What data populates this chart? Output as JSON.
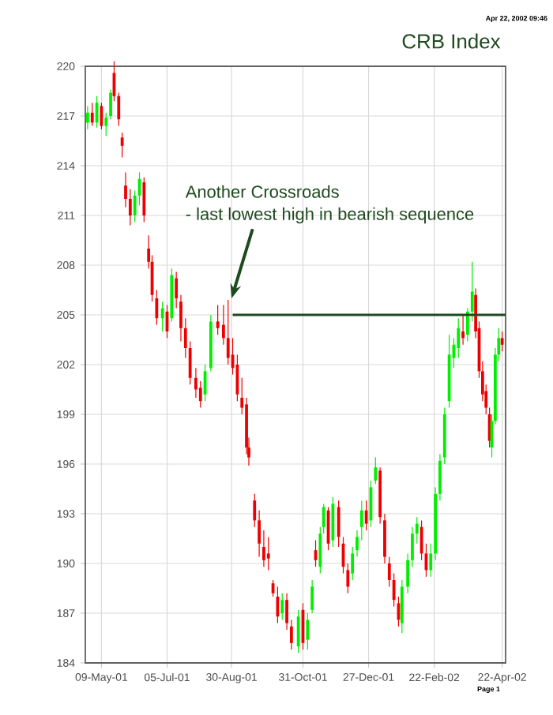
{
  "chart_data": {
    "type": "candlestick",
    "title": "CRB Index",
    "x": [
      "2001-04-27",
      "2001-05-01",
      "2001-05-05",
      "2001-05-09",
      "2001-05-13",
      "2001-05-17",
      "2001-05-20",
      "2001-05-24",
      "2001-05-27",
      "2001-05-30",
      "2001-06-03",
      "2001-06-07",
      "2001-06-11",
      "2001-06-15",
      "2001-06-19",
      "2001-06-22",
      "2001-06-26",
      "2001-07-01",
      "2001-07-05",
      "2001-07-09",
      "2001-07-13",
      "2001-07-17",
      "2001-07-21",
      "2001-07-25",
      "2001-07-30",
      "2001-08-03",
      "2001-08-07",
      "2001-08-12",
      "2001-08-18",
      "2001-08-23",
      "2001-08-27",
      "2001-08-31",
      "2001-09-04",
      "2001-09-08",
      "2001-09-12",
      "2001-09-14",
      "2001-09-19",
      "2001-09-23",
      "2001-09-27",
      "2001-10-01",
      "2001-10-05",
      "2001-10-09",
      "2001-10-13",
      "2001-10-17",
      "2001-10-21",
      "2001-10-27",
      "2001-10-31",
      "2001-11-04",
      "2001-11-08",
      "2001-11-11",
      "2001-11-15",
      "2001-11-18",
      "2001-11-22",
      "2001-11-26",
      "2001-12-01",
      "2001-12-05",
      "2001-12-09",
      "2001-12-13",
      "2001-12-17",
      "2001-12-21",
      "2001-12-25",
      "2001-12-29",
      "2002-01-02",
      "2002-01-06",
      "2002-01-10",
      "2002-01-14",
      "2002-01-18",
      "2002-01-22",
      "2002-01-25",
      "2002-01-30",
      "2002-02-03",
      "2002-02-07",
      "2002-02-11",
      "2002-02-15",
      "2002-02-19",
      "2002-02-23",
      "2002-02-27",
      "2002-03-03",
      "2002-03-07",
      "2002-03-11",
      "2002-03-15",
      "2002-03-19",
      "2002-03-23",
      "2002-03-27",
      "2002-03-30",
      "2002-04-02",
      "2002-04-05",
      "2002-04-08",
      "2002-04-11",
      "2002-04-13",
      "2002-04-16",
      "2002-04-19",
      "2002-04-22"
    ],
    "ohlc": [
      [
        216.6,
        217.6,
        216.2,
        217.2
      ],
      [
        217.2,
        217.8,
        216.4,
        216.6
      ],
      [
        216.6,
        218.2,
        216.3,
        217.8
      ],
      [
        217.6,
        217.8,
        216.2,
        216.4
      ],
      [
        216.4,
        217.2,
        215.8,
        216.9
      ],
      [
        217.0,
        218.6,
        216.8,
        218.4
      ],
      [
        219.6,
        220.3,
        217.9,
        218.2
      ],
      [
        218.2,
        218.4,
        216.4,
        216.8
      ],
      [
        215.7,
        216.0,
        214.5,
        215.2
      ],
      [
        212.8,
        213.6,
        211.5,
        212.0
      ],
      [
        212.0,
        212.6,
        210.4,
        211.0
      ],
      [
        211.0,
        212.5,
        210.6,
        212.2
      ],
      [
        212.2,
        213.6,
        211.6,
        213.2
      ],
      [
        213.0,
        213.3,
        210.6,
        211.0
      ],
      [
        209.0,
        209.8,
        207.8,
        208.2
      ],
      [
        208.2,
        208.6,
        205.8,
        206.2
      ],
      [
        206.0,
        206.5,
        204.4,
        204.8
      ],
      [
        204.8,
        205.8,
        204.0,
        205.4
      ],
      [
        205.2,
        205.6,
        203.6,
        204.0
      ],
      [
        204.8,
        207.8,
        204.6,
        207.4
      ],
      [
        207.2,
        207.6,
        205.4,
        206.0
      ],
      [
        205.8,
        206.2,
        203.4,
        204.2
      ],
      [
        204.2,
        204.8,
        202.4,
        203.0
      ],
      [
        203.0,
        203.4,
        200.8,
        201.2
      ],
      [
        201.2,
        201.8,
        200.0,
        200.5
      ],
      [
        200.6,
        201.0,
        199.4,
        199.8
      ],
      [
        200.2,
        202.0,
        199.8,
        201.6
      ],
      [
        201.8,
        205.0,
        201.6,
        204.6
      ],
      [
        204.6,
        205.6,
        203.8,
        204.2
      ],
      [
        204.4,
        205.6,
        203.2,
        203.6
      ],
      [
        203.6,
        205.9,
        202.0,
        202.4
      ],
      [
        202.6,
        203.6,
        201.4,
        201.8
      ],
      [
        202.0,
        202.6,
        199.8,
        200.2
      ],
      [
        200.0,
        201.2,
        199.0,
        199.4
      ],
      [
        199.6,
        200.0,
        196.6,
        197.0
      ],
      [
        197.0,
        197.6,
        195.9,
        196.4
      ],
      [
        193.8,
        194.2,
        192.2,
        192.6
      ],
      [
        192.6,
        193.2,
        190.4,
        191.2
      ],
      [
        191.0,
        192.0,
        189.8,
        190.2
      ],
      [
        190.6,
        191.6,
        189.6,
        190.3
      ],
      [
        188.8,
        189.0,
        188.0,
        188.2
      ],
      [
        188.0,
        188.6,
        186.4,
        186.8
      ],
      [
        187.0,
        188.2,
        186.6,
        187.8
      ],
      [
        187.8,
        188.2,
        186.0,
        186.4
      ],
      [
        186.2,
        186.6,
        184.8,
        185.2
      ],
      [
        185.0,
        187.2,
        184.6,
        186.8
      ],
      [
        187.2,
        187.6,
        184.8,
        185.2
      ],
      [
        185.4,
        187.0,
        184.8,
        186.6
      ],
      [
        187.2,
        189.0,
        187.0,
        188.6
      ],
      [
        190.8,
        191.4,
        189.8,
        190.2
      ],
      [
        189.8,
        192.2,
        189.4,
        191.8
      ],
      [
        192.2,
        193.6,
        191.8,
        193.4
      ],
      [
        193.2,
        193.4,
        190.8,
        191.2
      ],
      [
        191.4,
        194.0,
        191.0,
        193.6
      ],
      [
        193.4,
        193.8,
        191.0,
        191.6
      ],
      [
        191.2,
        191.6,
        189.4,
        189.8
      ],
      [
        189.6,
        190.0,
        188.2,
        188.6
      ],
      [
        189.4,
        191.0,
        189.0,
        190.6
      ],
      [
        190.8,
        192.0,
        190.4,
        191.6
      ],
      [
        192.2,
        193.8,
        191.4,
        193.2
      ],
      [
        193.2,
        193.8,
        192.0,
        192.4
      ],
      [
        192.6,
        195.0,
        192.2,
        194.6
      ],
      [
        195.0,
        196.4,
        194.8,
        195.8
      ],
      [
        195.6,
        195.8,
        192.4,
        192.8
      ],
      [
        192.6,
        193.0,
        190.0,
        190.4
      ],
      [
        190.0,
        190.4,
        188.6,
        189.0
      ],
      [
        189.0,
        189.4,
        187.4,
        187.8
      ],
      [
        187.6,
        188.0,
        186.2,
        186.6
      ],
      [
        186.4,
        189.0,
        185.8,
        188.6
      ],
      [
        188.6,
        190.6,
        188.2,
        190.2
      ],
      [
        190.2,
        192.2,
        189.8,
        191.8
      ],
      [
        191.8,
        192.8,
        191.2,
        192.4
      ],
      [
        192.2,
        192.6,
        190.2,
        190.6
      ],
      [
        190.6,
        191.2,
        189.2,
        189.6
      ],
      [
        189.6,
        191.2,
        189.2,
        190.6
      ],
      [
        190.6,
        194.6,
        190.2,
        194.2
      ],
      [
        194.2,
        196.6,
        193.8,
        196.2
      ],
      [
        196.4,
        199.4,
        196.0,
        199.0
      ],
      [
        199.8,
        203.8,
        199.4,
        202.6
      ],
      [
        202.4,
        203.6,
        201.8,
        203.2
      ],
      [
        203.0,
        204.8,
        202.4,
        204.2
      ],
      [
        204.0,
        205.0,
        203.2,
        203.6
      ],
      [
        203.8,
        205.4,
        203.4,
        205.2
      ],
      [
        205.2,
        208.2,
        204.6,
        206.4
      ],
      [
        206.2,
        206.6,
        203.6,
        204.0
      ],
      [
        204.2,
        204.6,
        201.2,
        201.6
      ],
      [
        201.6,
        202.2,
        199.8,
        200.2
      ],
      [
        200.4,
        200.8,
        199.0,
        199.4
      ],
      [
        199.0,
        199.4,
        197.0,
        197.4
      ],
      [
        197.0,
        199.0,
        196.4,
        198.6
      ],
      [
        198.6,
        203.0,
        198.4,
        202.6
      ],
      [
        202.6,
        204.2,
        202.2,
        203.6
      ],
      [
        203.6,
        204.0,
        202.8,
        203.2
      ]
    ],
    "series": [
      {
        "type": "line",
        "color": "#1f4a1f",
        "x": [
          "2001-08-31",
          "2002-04-25"
        ],
        "values": [
          205,
          205
        ]
      }
    ],
    "xlim": [
      "2001-04-25",
      "2002-04-25"
    ],
    "xticks": [
      {
        "value": "2001-05-09",
        "label": "09-May-01"
      },
      {
        "value": "2001-07-05",
        "label": "05-Jul-01"
      },
      {
        "value": "2001-08-30",
        "label": "30-Aug-01"
      },
      {
        "value": "2001-10-31",
        "label": "31-Oct-01"
      },
      {
        "value": "2001-12-27",
        "label": "27-Dec-01"
      },
      {
        "value": "2002-02-22",
        "label": "22-Feb-02"
      },
      {
        "value": "2002-04-22",
        "label": "22-Apr-02"
      }
    ],
    "ylim": [
      184,
      220
    ],
    "yticks": [
      184,
      187,
      190,
      193,
      196,
      199,
      202,
      205,
      208,
      211,
      214,
      217,
      220
    ],
    "grid": true,
    "annotations": [
      "Another Crossroads",
      {
        "text": "- last lowest high in bearish sequence",
        "x": "2001-08-30",
        "y": 206
      },
      "Apr 22, 2002 09:46",
      "Page 1"
    ]
  }
}
